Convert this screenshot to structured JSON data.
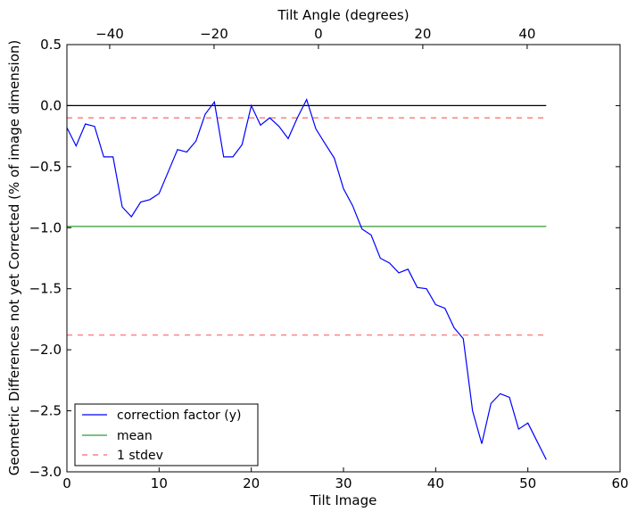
{
  "chart_data": {
    "type": "line",
    "title": "",
    "xlabel": "Tilt Image",
    "ylabel": "Geometric Differences not yet Corrected (% of image dimension)",
    "top_xlabel": "Tilt Angle (degrees)",
    "xlim": [
      0,
      60
    ],
    "ylim": [
      -3.0,
      0.5
    ],
    "top_xlim": [
      -48.2,
      57.8
    ],
    "xticks": [
      0,
      10,
      20,
      30,
      40,
      50,
      60
    ],
    "xtick_labels": [
      "0",
      "10",
      "20",
      "30",
      "40",
      "50",
      "60"
    ],
    "yticks": [
      0.5,
      0.0,
      -0.5,
      -1.0,
      -1.5,
      -2.0,
      -2.5,
      -3.0
    ],
    "ytick_labels": [
      "0.5",
      "0.0",
      "−0.5",
      "−1.0",
      "−1.5",
      "−2.0",
      "−2.5",
      "−3.0"
    ],
    "top_xticks": [
      -40,
      -20,
      0,
      20,
      40
    ],
    "top_xtick_labels": [
      "−40",
      "−20",
      "0",
      "20",
      "40"
    ],
    "grid": false,
    "legend_position": "bottom-left",
    "series": [
      {
        "name": "correction factor (y)",
        "color": "#0000ff",
        "style": "solid",
        "x": [
          0,
          1,
          2,
          3,
          4,
          5,
          6,
          7,
          8,
          9,
          10,
          11,
          12,
          13,
          14,
          15,
          16,
          17,
          18,
          19,
          20,
          21,
          22,
          23,
          24,
          25,
          26,
          27,
          28,
          29,
          30,
          31,
          32,
          33,
          34,
          35,
          36,
          37,
          38,
          39,
          40,
          41,
          42,
          43,
          44,
          45,
          46,
          47,
          48,
          49,
          50,
          51,
          52
        ],
        "values": [
          -0.18,
          -0.33,
          -0.15,
          -0.17,
          -0.42,
          -0.42,
          -0.83,
          -0.91,
          -0.79,
          -0.77,
          -0.72,
          -0.54,
          -0.36,
          -0.38,
          -0.29,
          -0.07,
          0.03,
          -0.42,
          -0.42,
          -0.32,
          0.0,
          -0.16,
          -0.1,
          -0.17,
          -0.27,
          -0.1,
          0.05,
          -0.19,
          -0.31,
          -0.43,
          -0.68,
          -0.82,
          -1.01,
          -1.06,
          -1.25,
          -1.29,
          -1.37,
          -1.34,
          -1.49,
          -1.5,
          -1.63,
          -1.66,
          -1.82,
          -1.91,
          -2.5,
          -2.77,
          -2.44,
          -2.36,
          -2.39,
          -2.65,
          -2.6,
          -2.75,
          -2.9
        ]
      },
      {
        "name": "zero",
        "color": "#000000",
        "style": "solid",
        "x": [
          0,
          52
        ],
        "values": [
          0.0,
          0.0
        ],
        "in_legend": false
      },
      {
        "name": "mean",
        "color": "#008000",
        "style": "solid",
        "x": [
          0,
          52
        ],
        "values": [
          -0.99,
          -0.99
        ]
      },
      {
        "name": "1 stdev",
        "color": "#ff0000",
        "style": "dashed",
        "x": [
          0,
          52
        ],
        "values": [
          -0.1,
          -0.1
        ]
      },
      {
        "name": "1 stdev lower",
        "color": "#ff0000",
        "style": "dashed",
        "x": [
          0,
          52
        ],
        "values": [
          -1.88,
          -1.88
        ],
        "in_legend": false
      }
    ]
  }
}
